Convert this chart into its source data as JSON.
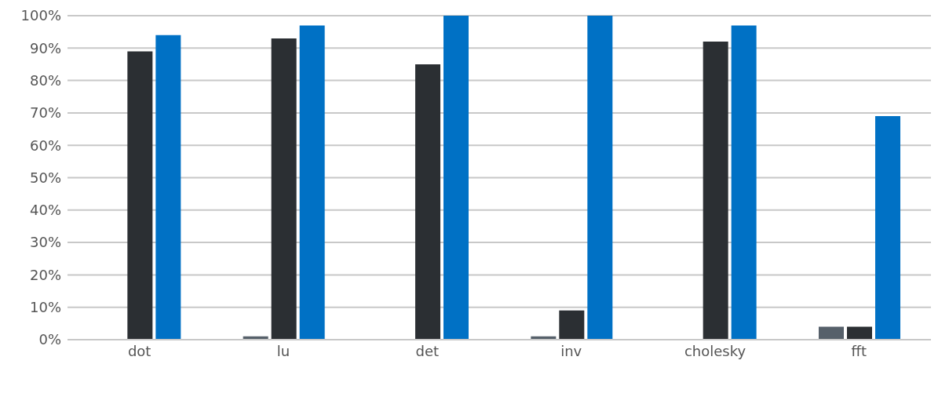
{
  "chart_data": {
    "type": "bar",
    "categories": [
      "dot",
      "lu",
      "det",
      "inv",
      "cholesky",
      "fft"
    ],
    "series": [
      {
        "color": "#56606a",
        "values": [
          null,
          1,
          null,
          1,
          null,
          4
        ]
      },
      {
        "color": "#2b2f33",
        "values": [
          89,
          93,
          85,
          9,
          92,
          4
        ]
      },
      {
        "color": "#0071c5",
        "values": [
          94,
          97,
          100,
          100,
          97,
          69
        ]
      }
    ],
    "ylim": [
      0,
      100
    ],
    "yticks": [
      {
        "value": 0,
        "label": "0%"
      },
      {
        "value": 10,
        "label": "10%"
      },
      {
        "value": 20,
        "label": "20%"
      },
      {
        "value": 30,
        "label": "30%"
      },
      {
        "value": 40,
        "label": "40%"
      },
      {
        "value": 50,
        "label": "50%"
      },
      {
        "value": 60,
        "label": "60%"
      },
      {
        "value": 70,
        "label": "70%"
      },
      {
        "value": 80,
        "label": "80%"
      },
      {
        "value": 90,
        "label": "90%"
      },
      {
        "value": 100,
        "label": "100%"
      }
    ],
    "grid": "y"
  }
}
